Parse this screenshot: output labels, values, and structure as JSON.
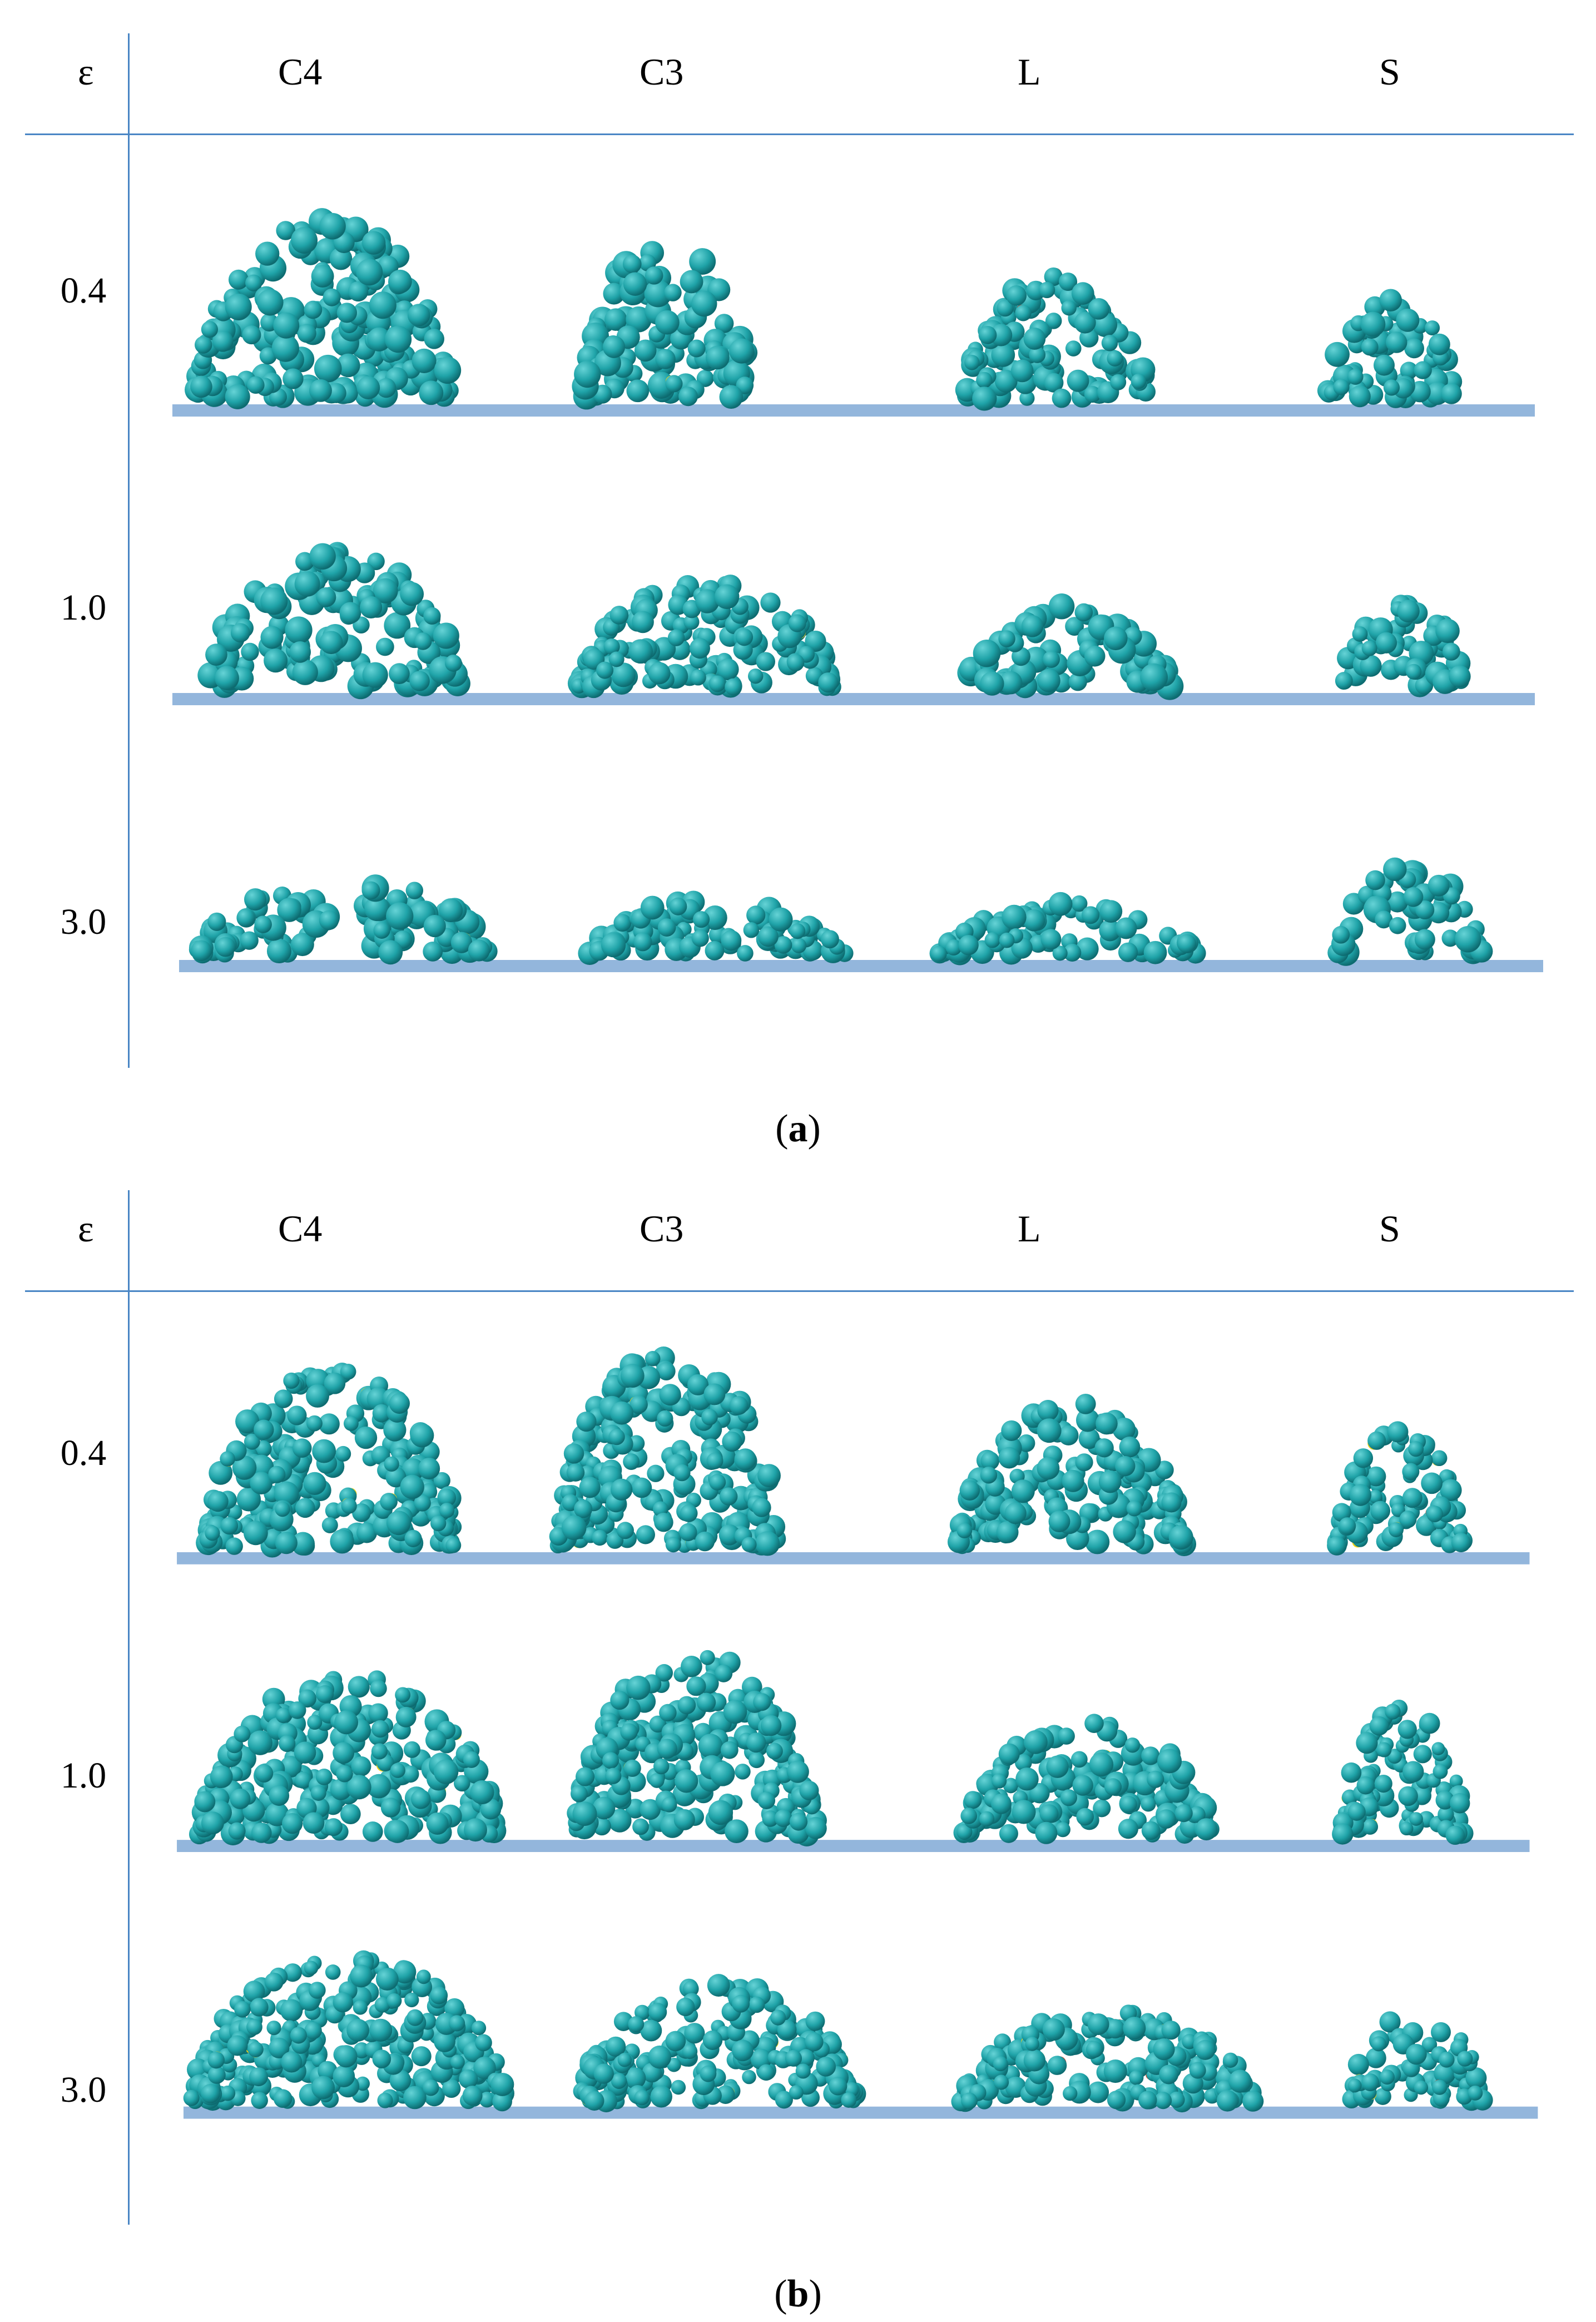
{
  "figure": {
    "panels": [
      {
        "id": "a",
        "caption_open": "(",
        "caption_letter": "a",
        "caption_close": ")",
        "column_header_symbol": "ε",
        "columns": [
          "C4",
          "C3",
          "L",
          "S"
        ],
        "rows": [
          "0.4",
          "1.0",
          "3.0"
        ]
      },
      {
        "id": "b",
        "caption_open": "(",
        "caption_letter": "b",
        "caption_close": ")",
        "column_header_symbol": "ε",
        "columns": [
          "C4",
          "C3",
          "L",
          "S"
        ],
        "rows": [
          "0.4",
          "1.0",
          "3.0"
        ]
      }
    ],
    "colors": {
      "axis_line": "#4a86c5",
      "substrate": "#93b6dc",
      "bead_cyan": "#1fa3a8",
      "bead_highlight": "#66d3d6",
      "bead_yellow": "#f0d21a",
      "bead_red": "#d63a1c"
    }
  }
}
